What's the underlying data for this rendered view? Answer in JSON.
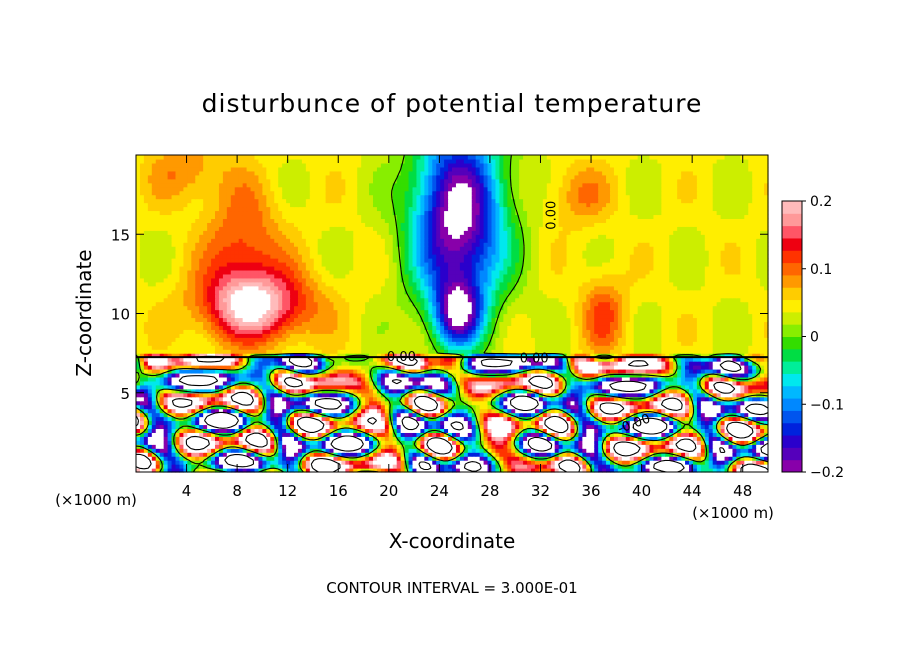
{
  "chart_data": {
    "type": "heatmap",
    "title": "disturbunce of potential temperature",
    "xlabel": "X-coordinate",
    "ylabel": "Z-coordinate",
    "x_unit_label": "(×1000 m)",
    "z_unit_label": "(×1000 m)",
    "xlim": [
      0,
      50
    ],
    "zlim": [
      0,
      20
    ],
    "x_ticks": [
      4,
      8,
      12,
      16,
      20,
      24,
      28,
      32,
      36,
      40,
      44,
      48
    ],
    "z_ticks": [
      5,
      10,
      15
    ],
    "colorbar": {
      "range": [
        -0.2,
        0.2
      ],
      "tick_values": [
        0.2,
        0.1,
        0,
        -0.1,
        -0.2
      ],
      "tick_labels": [
        "0.2",
        "0.1",
        "0",
        "−0.1",
        "−0.2"
      ],
      "colors": [
        "#8800aa",
        "#5500bb",
        "#2a00cc",
        "#0022dd",
        "#0055ee",
        "#0088ff",
        "#00b8ff",
        "#00e8ee",
        "#00ee99",
        "#00dd44",
        "#33dd00",
        "#88ee00",
        "#ccee00",
        "#ffee00",
        "#ffcc00",
        "#ff9900",
        "#ff6600",
        "#ff3300",
        "#ee0011",
        "#ff5566",
        "#ff9999",
        "#ffbbbb"
      ]
    },
    "contour_labels": [
      "0.00",
      "0.00",
      "0.00",
      "-0.00"
    ],
    "contour_interval_note": "CONTOUR INTERVAL = 3.000E-01",
    "upper_features": [
      {
        "x": 25.5,
        "z": 16,
        "sx": 3.6,
        "sz": 6.0,
        "amp": -0.26
      },
      {
        "x": 25.5,
        "z": 10,
        "sx": 1.8,
        "sz": 2.0,
        "amp": -0.18
      },
      {
        "x": 9.5,
        "z": 10.5,
        "sx": 4.5,
        "sz": 2.2,
        "amp": 0.15
      },
      {
        "x": 8.5,
        "z": 14,
        "sx": 3.0,
        "sz": 4.0,
        "amp": 0.08
      },
      {
        "x": 37,
        "z": 10,
        "sx": 1.8,
        "sz": 2.5,
        "amp": 0.07
      },
      {
        "x": 35,
        "z": 17.5,
        "sx": 2.5,
        "sz": 2.0,
        "amp": 0.05
      },
      {
        "x": 4,
        "z": 19,
        "sx": 3.0,
        "sz": 2.0,
        "amp": 0.05
      }
    ]
  }
}
